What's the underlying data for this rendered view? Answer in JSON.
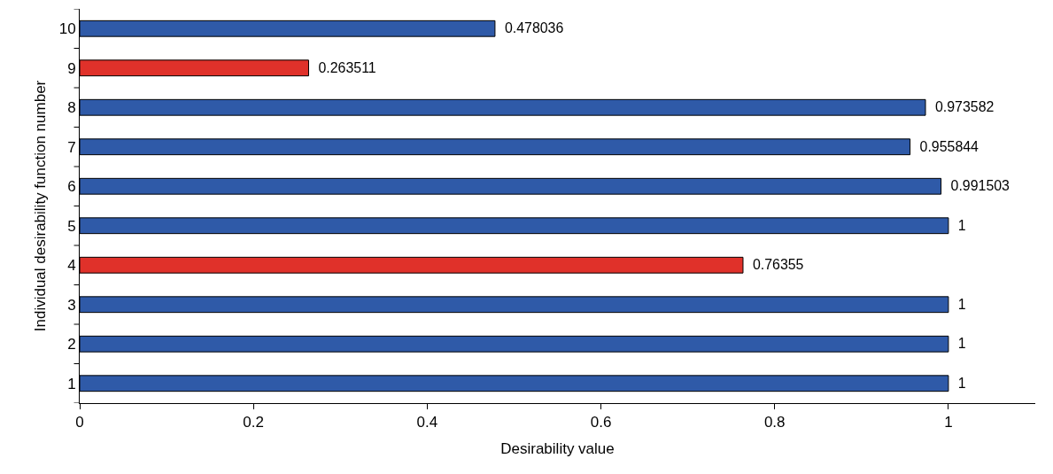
{
  "chart_data": {
    "type": "bar",
    "orientation": "horizontal",
    "xlabel": "Desirability value",
    "ylabel": "Individual desirability function number",
    "categories": [
      "10",
      "9",
      "8",
      "7",
      "6",
      "5",
      "4",
      "3",
      "2",
      "1"
    ],
    "values": [
      0.478036,
      0.263511,
      0.973582,
      0.955844,
      0.991503,
      1,
      0.76355,
      1,
      1,
      1
    ],
    "colors": [
      "#2f5aa8",
      "#e0312a",
      "#2f5aa8",
      "#2f5aa8",
      "#2f5aa8",
      "#2f5aa8",
      "#e0312a",
      "#2f5aa8",
      "#2f5aa8",
      "#2f5aa8"
    ],
    "data_labels": true,
    "xlim": [
      0,
      1.1
    ],
    "xticks": [
      0,
      0.2,
      0.4,
      0.6,
      0.8,
      1
    ],
    "grid": false
  }
}
